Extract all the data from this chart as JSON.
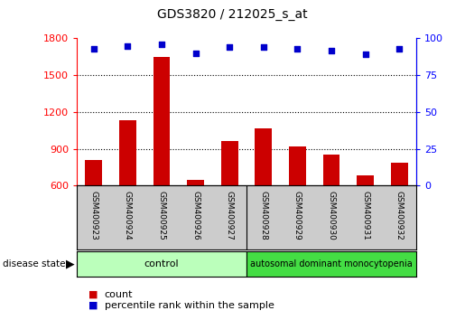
{
  "title": "GDS3820 / 212025_s_at",
  "samples": [
    "GSM400923",
    "GSM400924",
    "GSM400925",
    "GSM400926",
    "GSM400927",
    "GSM400928",
    "GSM400929",
    "GSM400930",
    "GSM400931",
    "GSM400932"
  ],
  "counts": [
    810,
    1130,
    1650,
    650,
    960,
    1070,
    920,
    855,
    680,
    790
  ],
  "percentiles": [
    93,
    95,
    96,
    90,
    94,
    94,
    93,
    92,
    89,
    93
  ],
  "ylim_left": [
    600,
    1800
  ],
  "ylim_right": [
    0,
    100
  ],
  "yticks_left": [
    600,
    900,
    1200,
    1500,
    1800
  ],
  "yticks_right": [
    0,
    25,
    50,
    75,
    100
  ],
  "bar_color": "#cc0000",
  "scatter_color": "#0000cc",
  "bar_bottom": 600,
  "control_count": 5,
  "disease_count": 5,
  "control_label": "control",
  "disease_label": "autosomal dominant monocytopenia",
  "control_color": "#bbffbb",
  "disease_color": "#44dd44",
  "xlabel_area_color": "#cccccc",
  "legend_count_label": "count",
  "legend_pct_label": "percentile rank within the sample",
  "disease_state_label": "disease state",
  "dotted_gridlines": [
    900,
    1200,
    1500
  ],
  "bar_width": 0.5
}
